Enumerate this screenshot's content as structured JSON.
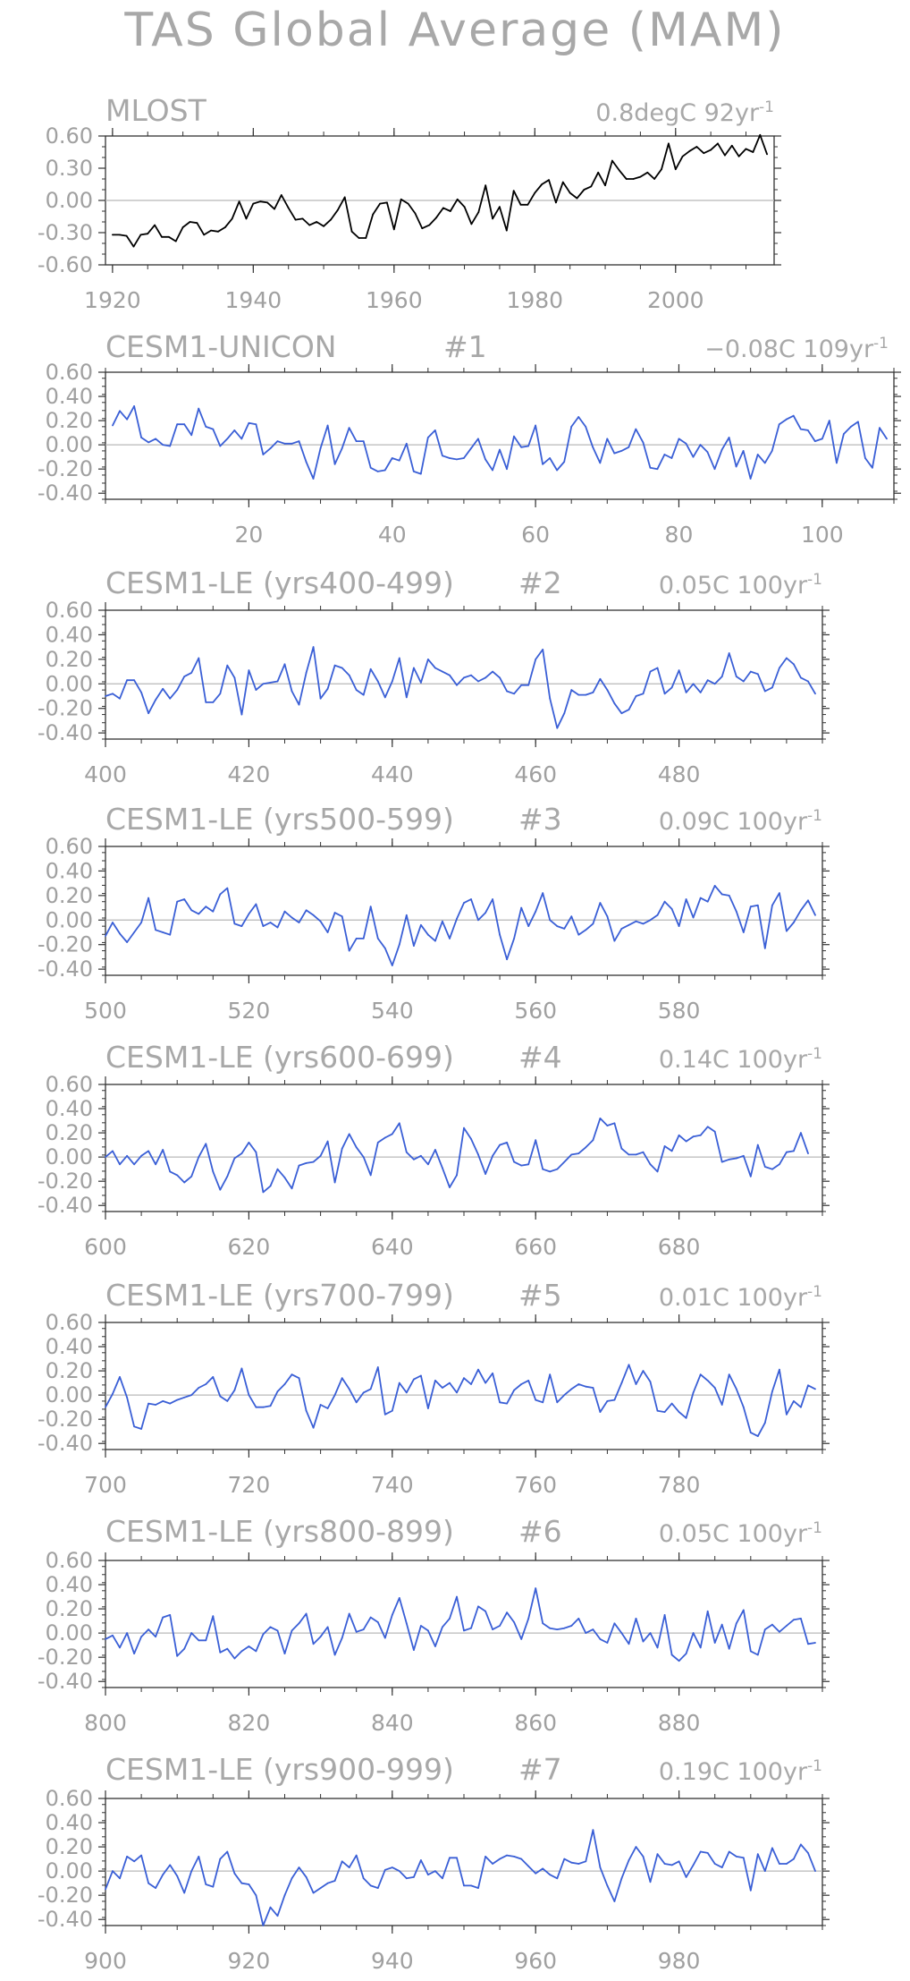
{
  "figure": {
    "title": "TAS Global Average (MAM)"
  },
  "chart_data": [
    {
      "type": "line",
      "label": "MLOST",
      "member": "",
      "trend_text": "0.8degC 92yr",
      "trend_exp": "-1",
      "color": "#000000",
      "x_start": 1920,
      "ylim": [
        -0.6,
        0.6
      ],
      "yticks": [
        "0.60",
        "0.30",
        "0.00",
        "-0.30",
        "-0.60"
      ],
      "ytick_values": [
        0.6,
        0.3,
        0.0,
        -0.3,
        -0.6
      ],
      "xlim": [
        1919,
        2014
      ],
      "xticks": [
        1920,
        1940,
        1960,
        1980,
        2000
      ],
      "y": [
        -0.32,
        -0.32,
        -0.33,
        -0.43,
        -0.32,
        -0.31,
        -0.23,
        -0.34,
        -0.34,
        -0.38,
        -0.25,
        -0.2,
        -0.21,
        -0.32,
        -0.28,
        -0.29,
        -0.25,
        -0.17,
        -0.01,
        -0.17,
        -0.03,
        -0.01,
        -0.02,
        -0.08,
        0.05,
        -0.07,
        -0.18,
        -0.17,
        -0.23,
        -0.2,
        -0.24,
        -0.18,
        -0.09,
        0.03,
        -0.29,
        -0.35,
        -0.35,
        -0.13,
        -0.03,
        -0.02,
        -0.27,
        0.01,
        -0.03,
        -0.12,
        -0.26,
        -0.23,
        -0.16,
        -0.07,
        -0.1,
        0.01,
        -0.06,
        -0.22,
        -0.11,
        0.14,
        -0.17,
        -0.06,
        -0.28,
        0.09,
        -0.04,
        -0.04,
        0.07,
        0.15,
        0.19,
        -0.02,
        0.17,
        0.07,
        0.02,
        0.1,
        0.13,
        0.26,
        0.14,
        0.37,
        0.28,
        0.2,
        0.2,
        0.22,
        0.26,
        0.2,
        0.29,
        0.53,
        0.29,
        0.41,
        0.46,
        0.5,
        0.44,
        0.47,
        0.53,
        0.42,
        0.51,
        0.41,
        0.48,
        0.45,
        0.61,
        0.43
      ]
    },
    {
      "type": "line",
      "label": "CESM1-UNICON",
      "member": "#1",
      "trend_text": "−0.08C 109yr",
      "trend_exp": "-1",
      "color": "#3a5fd6",
      "x_start": 1,
      "ylim": [
        -0.45,
        0.6
      ],
      "yticks": [
        "0.60",
        "0.40",
        "0.20",
        "0.00",
        "-0.20",
        "-0.40"
      ],
      "ytick_values": [
        0.6,
        0.4,
        0.2,
        0.0,
        -0.2,
        -0.4
      ],
      "xlim": [
        0,
        110
      ],
      "xticks": [
        20,
        40,
        60,
        80,
        100
      ],
      "y": [
        0.16,
        0.28,
        0.21,
        0.32,
        0.06,
        0.02,
        0.05,
        0.0,
        -0.01,
        0.17,
        0.17,
        0.08,
        0.3,
        0.15,
        0.13,
        -0.01,
        0.05,
        0.12,
        0.05,
        0.18,
        0.17,
        -0.08,
        -0.03,
        0.03,
        0.01,
        0.01,
        0.03,
        -0.14,
        -0.28,
        -0.03,
        0.16,
        -0.16,
        -0.03,
        0.14,
        0.03,
        0.03,
        -0.19,
        -0.22,
        -0.21,
        -0.11,
        -0.13,
        0.01,
        -0.22,
        -0.24,
        0.06,
        0.12,
        -0.09,
        -0.11,
        -0.12,
        -0.11,
        -0.03,
        0.05,
        -0.12,
        -0.21,
        -0.04,
        -0.2,
        0.07,
        -0.02,
        -0.01,
        0.16,
        -0.16,
        -0.11,
        -0.21,
        -0.14,
        0.15,
        0.23,
        0.15,
        -0.02,
        -0.15,
        0.05,
        -0.07,
        -0.05,
        -0.02,
        0.13,
        0.02,
        -0.19,
        -0.2,
        -0.08,
        -0.11,
        0.05,
        0.01,
        -0.1,
        0.0,
        -0.06,
        -0.2,
        -0.04,
        0.06,
        -0.18,
        -0.05,
        -0.28,
        -0.08,
        -0.15,
        -0.05,
        0.17,
        0.21,
        0.24,
        0.13,
        0.12,
        0.03,
        0.05,
        0.2,
        -0.15,
        0.09,
        0.15,
        0.19,
        -0.11,
        -0.19,
        0.14,
        0.05
      ]
    },
    {
      "type": "line",
      "label": "CESM1-LE (yrs400-499)",
      "member": "#2",
      "trend_text": "0.05C 100yr",
      "trend_exp": "-1",
      "color": "#3a5fd6",
      "x_start": 400,
      "ylim": [
        -0.45,
        0.6
      ],
      "yticks": [
        "0.60",
        "0.40",
        "0.20",
        "0.00",
        "-0.20",
        "-0.40"
      ],
      "ytick_values": [
        0.6,
        0.4,
        0.2,
        0.0,
        -0.2,
        -0.4
      ],
      "xlim": [
        400,
        500
      ],
      "xticks": [
        400,
        420,
        440,
        460,
        480
      ],
      "y": [
        -0.1,
        -0.08,
        -0.12,
        0.03,
        0.03,
        -0.07,
        -0.24,
        -0.13,
        -0.04,
        -0.12,
        -0.05,
        0.06,
        0.09,
        0.21,
        -0.15,
        -0.15,
        -0.08,
        0.15,
        0.05,
        -0.25,
        0.11,
        -0.05,
        0.0,
        0.01,
        0.02,
        0.16,
        -0.06,
        -0.17,
        0.09,
        0.3,
        -0.12,
        -0.04,
        0.15,
        0.13,
        0.07,
        -0.05,
        -0.09,
        0.12,
        0.02,
        -0.11,
        0.02,
        0.21,
        -0.11,
        0.13,
        0.01,
        0.2,
        0.13,
        0.1,
        0.07,
        -0.01,
        0.05,
        0.07,
        0.02,
        0.05,
        0.1,
        0.05,
        -0.06,
        -0.08,
        -0.01,
        -0.01,
        0.2,
        0.28,
        -0.12,
        -0.36,
        -0.24,
        -0.05,
        -0.09,
        -0.09,
        -0.07,
        0.04,
        -0.05,
        -0.16,
        -0.24,
        -0.21,
        -0.1,
        -0.08,
        0.1,
        0.13,
        -0.08,
        -0.03,
        0.11,
        -0.07,
        0.0,
        -0.07,
        0.03,
        0.0,
        0.06,
        0.25,
        0.06,
        0.02,
        0.1,
        0.08,
        -0.06,
        -0.03,
        0.13,
        0.21,
        0.16,
        0.05,
        0.02,
        -0.08
      ]
    },
    {
      "type": "line",
      "label": "CESM1-LE (yrs500-599)",
      "member": "#3",
      "trend_text": "0.09C 100yr",
      "trend_exp": "-1",
      "color": "#3a5fd6",
      "x_start": 500,
      "ylim": [
        -0.45,
        0.6
      ],
      "yticks": [
        "0.60",
        "0.40",
        "0.20",
        "0.00",
        "-0.20",
        "-0.40"
      ],
      "ytick_values": [
        0.6,
        0.4,
        0.2,
        0.0,
        -0.2,
        -0.4
      ],
      "xlim": [
        500,
        600
      ],
      "xticks": [
        500,
        520,
        540,
        560,
        580
      ],
      "y": [
        -0.13,
        -0.02,
        -0.11,
        -0.18,
        -0.1,
        -0.02,
        0.18,
        -0.08,
        -0.1,
        -0.12,
        0.15,
        0.17,
        0.08,
        0.05,
        0.11,
        0.07,
        0.21,
        0.26,
        -0.03,
        -0.05,
        0.05,
        0.13,
        -0.05,
        -0.02,
        -0.06,
        0.07,
        0.02,
        -0.02,
        0.08,
        0.04,
        -0.01,
        -0.1,
        0.06,
        0.03,
        -0.25,
        -0.15,
        -0.15,
        0.11,
        -0.15,
        -0.23,
        -0.37,
        -0.2,
        0.04,
        -0.21,
        -0.04,
        -0.12,
        -0.17,
        -0.01,
        -0.15,
        0.01,
        0.14,
        0.17,
        0.0,
        0.06,
        0.17,
        -0.12,
        -0.32,
        -0.15,
        0.1,
        -0.05,
        0.07,
        0.22,
        0.0,
        -0.05,
        -0.07,
        0.03,
        -0.12,
        -0.08,
        -0.03,
        0.14,
        0.03,
        -0.17,
        -0.07,
        -0.04,
        -0.01,
        -0.03,
        0.0,
        0.04,
        0.15,
        0.09,
        -0.05,
        0.17,
        0.02,
        0.18,
        0.15,
        0.28,
        0.21,
        0.2,
        0.07,
        -0.1,
        0.11,
        0.12,
        -0.23,
        0.12,
        0.22,
        -0.09,
        -0.02,
        0.08,
        0.16,
        0.04
      ]
    },
    {
      "type": "line",
      "label": "CESM1-LE (yrs600-699)",
      "member": "#4",
      "trend_text": "0.14C 100yr",
      "trend_exp": "-1",
      "color": "#3a5fd6",
      "x_start": 600,
      "ylim": [
        -0.45,
        0.6
      ],
      "yticks": [
        "0.60",
        "0.40",
        "0.20",
        "0.00",
        "-0.20",
        "-0.40"
      ],
      "ytick_values": [
        0.6,
        0.4,
        0.2,
        0.0,
        -0.2,
        -0.4
      ],
      "xlim": [
        600,
        700
      ],
      "xticks": [
        600,
        620,
        640,
        660,
        680
      ],
      "y": [
        0.0,
        0.05,
        -0.06,
        0.01,
        -0.06,
        0.01,
        0.05,
        -0.06,
        0.06,
        -0.12,
        -0.15,
        -0.21,
        -0.16,
        0.0,
        0.11,
        -0.12,
        -0.27,
        -0.16,
        -0.01,
        0.03,
        0.12,
        0.04,
        -0.29,
        -0.24,
        -0.1,
        -0.17,
        -0.26,
        -0.07,
        -0.05,
        -0.04,
        0.01,
        0.13,
        -0.21,
        0.07,
        0.19,
        0.08,
        0.0,
        -0.15,
        0.12,
        0.16,
        0.19,
        0.28,
        0.04,
        -0.02,
        0.01,
        -0.06,
        0.06,
        -0.09,
        -0.25,
        -0.15,
        0.24,
        0.15,
        0.02,
        -0.14,
        0.01,
        0.1,
        0.12,
        -0.04,
        -0.07,
        -0.06,
        0.14,
        -0.1,
        -0.12,
        -0.1,
        -0.04,
        0.02,
        0.03,
        0.08,
        0.14,
        0.32,
        0.26,
        0.28,
        0.07,
        0.02,
        0.02,
        0.04,
        -0.06,
        -0.12,
        0.09,
        0.05,
        0.18,
        0.13,
        0.17,
        0.18,
        0.25,
        0.21,
        -0.04,
        -0.02,
        -0.01,
        0.01,
        -0.16,
        0.1,
        -0.08,
        -0.1,
        -0.06,
        0.04,
        0.05,
        0.2,
        0.03
      ]
    },
    {
      "type": "line",
      "label": "CESM1-LE (yrs700-799)",
      "member": "#5",
      "trend_text": "0.01C 100yr",
      "trend_exp": "-1",
      "color": "#3a5fd6",
      "x_start": 700,
      "ylim": [
        -0.45,
        0.6
      ],
      "yticks": [
        "0.60",
        "0.40",
        "0.20",
        "0.00",
        "-0.20",
        "-0.40"
      ],
      "ytick_values": [
        0.6,
        0.4,
        0.2,
        0.0,
        -0.2,
        -0.4
      ],
      "xlim": [
        700,
        800
      ],
      "xticks": [
        700,
        720,
        740,
        760,
        780
      ],
      "y": [
        -0.1,
        0.01,
        0.15,
        -0.02,
        -0.26,
        -0.28,
        -0.07,
        -0.08,
        -0.05,
        -0.07,
        -0.04,
        -0.02,
        0.0,
        0.06,
        0.09,
        0.15,
        -0.01,
        -0.05,
        0.04,
        0.22,
        0.0,
        -0.1,
        -0.1,
        -0.09,
        0.03,
        0.09,
        0.17,
        0.14,
        -0.13,
        -0.27,
        -0.08,
        -0.11,
        0.0,
        0.14,
        0.05,
        -0.06,
        0.02,
        0.05,
        0.23,
        -0.16,
        -0.13,
        0.1,
        0.02,
        0.13,
        0.16,
        -0.11,
        0.12,
        0.06,
        0.1,
        0.02,
        0.14,
        0.09,
        0.21,
        0.1,
        0.18,
        -0.06,
        -0.07,
        0.04,
        0.09,
        0.12,
        -0.04,
        -0.06,
        0.17,
        -0.06,
        0.0,
        0.05,
        0.09,
        0.07,
        0.06,
        -0.14,
        -0.05,
        -0.04,
        0.1,
        0.25,
        0.09,
        0.2,
        0.11,
        -0.13,
        -0.14,
        -0.07,
        -0.14,
        -0.19,
        0.02,
        0.17,
        0.12,
        0.06,
        -0.08,
        0.17,
        0.05,
        -0.1,
        -0.31,
        -0.34,
        -0.23,
        0.03,
        0.21,
        -0.16,
        -0.05,
        -0.1,
        0.08,
        0.05
      ]
    },
    {
      "type": "line",
      "label": "CESM1-LE (yrs800-899)",
      "member": "#6",
      "trend_text": "0.05C 100yr",
      "trend_exp": "-1",
      "color": "#3a5fd6",
      "x_start": 800,
      "ylim": [
        -0.45,
        0.6
      ],
      "yticks": [
        "0.60",
        "0.40",
        "0.20",
        "0.00",
        "-0.20",
        "-0.40"
      ],
      "ytick_values": [
        0.6,
        0.4,
        0.2,
        0.0,
        -0.2,
        -0.4
      ],
      "xlim": [
        800,
        900
      ],
      "xticks": [
        800,
        820,
        840,
        860,
        880
      ],
      "y": [
        -0.05,
        -0.02,
        -0.12,
        0.0,
        -0.17,
        -0.03,
        0.03,
        -0.03,
        0.13,
        0.15,
        -0.19,
        -0.13,
        0.0,
        -0.06,
        -0.06,
        0.14,
        -0.16,
        -0.13,
        -0.21,
        -0.15,
        -0.11,
        -0.15,
        -0.01,
        0.05,
        0.02,
        -0.17,
        0.02,
        0.08,
        0.16,
        -0.09,
        -0.03,
        0.05,
        -0.18,
        -0.04,
        0.16,
        0.01,
        0.03,
        0.13,
        0.09,
        -0.04,
        0.15,
        0.29,
        0.08,
        -0.14,
        0.06,
        0.02,
        -0.11,
        0.05,
        0.12,
        0.3,
        0.02,
        0.04,
        0.22,
        0.18,
        0.03,
        0.06,
        0.17,
        0.09,
        -0.05,
        0.12,
        0.37,
        0.08,
        0.04,
        0.03,
        0.04,
        0.06,
        0.12,
        0.0,
        0.03,
        -0.05,
        -0.08,
        0.08,
        0.0,
        -0.09,
        0.12,
        -0.07,
        0.0,
        -0.12,
        0.15,
        -0.18,
        -0.23,
        -0.17,
        0.0,
        -0.12,
        0.18,
        -0.08,
        0.07,
        -0.13,
        0.08,
        0.19,
        -0.15,
        -0.18,
        0.03,
        0.07,
        0.01,
        0.06,
        0.11,
        0.12,
        -0.09,
        -0.08
      ]
    },
    {
      "type": "line",
      "label": "CESM1-LE (yrs900-999)",
      "member": "#7",
      "trend_text": "0.19C 100yr",
      "trend_exp": "-1",
      "color": "#3a5fd6",
      "x_start": 900,
      "ylim": [
        -0.45,
        0.6
      ],
      "yticks": [
        "0.60",
        "0.40",
        "0.20",
        "0.00",
        "-0.20",
        "-0.40"
      ],
      "ytick_values": [
        0.6,
        0.4,
        0.2,
        0.0,
        -0.2,
        -0.4
      ],
      "xlim": [
        900,
        1000
      ],
      "xticks": [
        900,
        920,
        940,
        960,
        980
      ],
      "y": [
        -0.15,
        0.0,
        -0.06,
        0.12,
        0.08,
        0.13,
        -0.1,
        -0.14,
        -0.03,
        0.05,
        -0.04,
        -0.18,
        0.0,
        0.12,
        -0.11,
        -0.13,
        0.1,
        0.16,
        -0.02,
        -0.1,
        -0.11,
        -0.2,
        -0.45,
        -0.3,
        -0.37,
        -0.2,
        -0.06,
        0.03,
        -0.05,
        -0.18,
        -0.14,
        -0.1,
        -0.08,
        0.08,
        0.03,
        0.13,
        -0.06,
        -0.12,
        -0.14,
        0.01,
        0.03,
        0.0,
        -0.06,
        -0.05,
        0.09,
        -0.03,
        0.0,
        -0.06,
        0.11,
        0.11,
        -0.12,
        -0.12,
        -0.14,
        0.12,
        0.06,
        0.1,
        0.13,
        0.12,
        0.1,
        0.04,
        -0.02,
        0.02,
        -0.03,
        -0.06,
        0.1,
        0.07,
        0.06,
        0.08,
        0.34,
        0.03,
        -0.12,
        -0.25,
        -0.06,
        0.09,
        0.2,
        0.12,
        -0.09,
        0.14,
        0.06,
        0.05,
        0.08,
        -0.05,
        0.05,
        0.16,
        0.15,
        0.06,
        0.03,
        0.16,
        0.12,
        0.11,
        -0.16,
        0.14,
        0.0,
        0.19,
        0.06,
        0.06,
        0.1,
        0.22,
        0.15,
        0.0
      ]
    }
  ]
}
